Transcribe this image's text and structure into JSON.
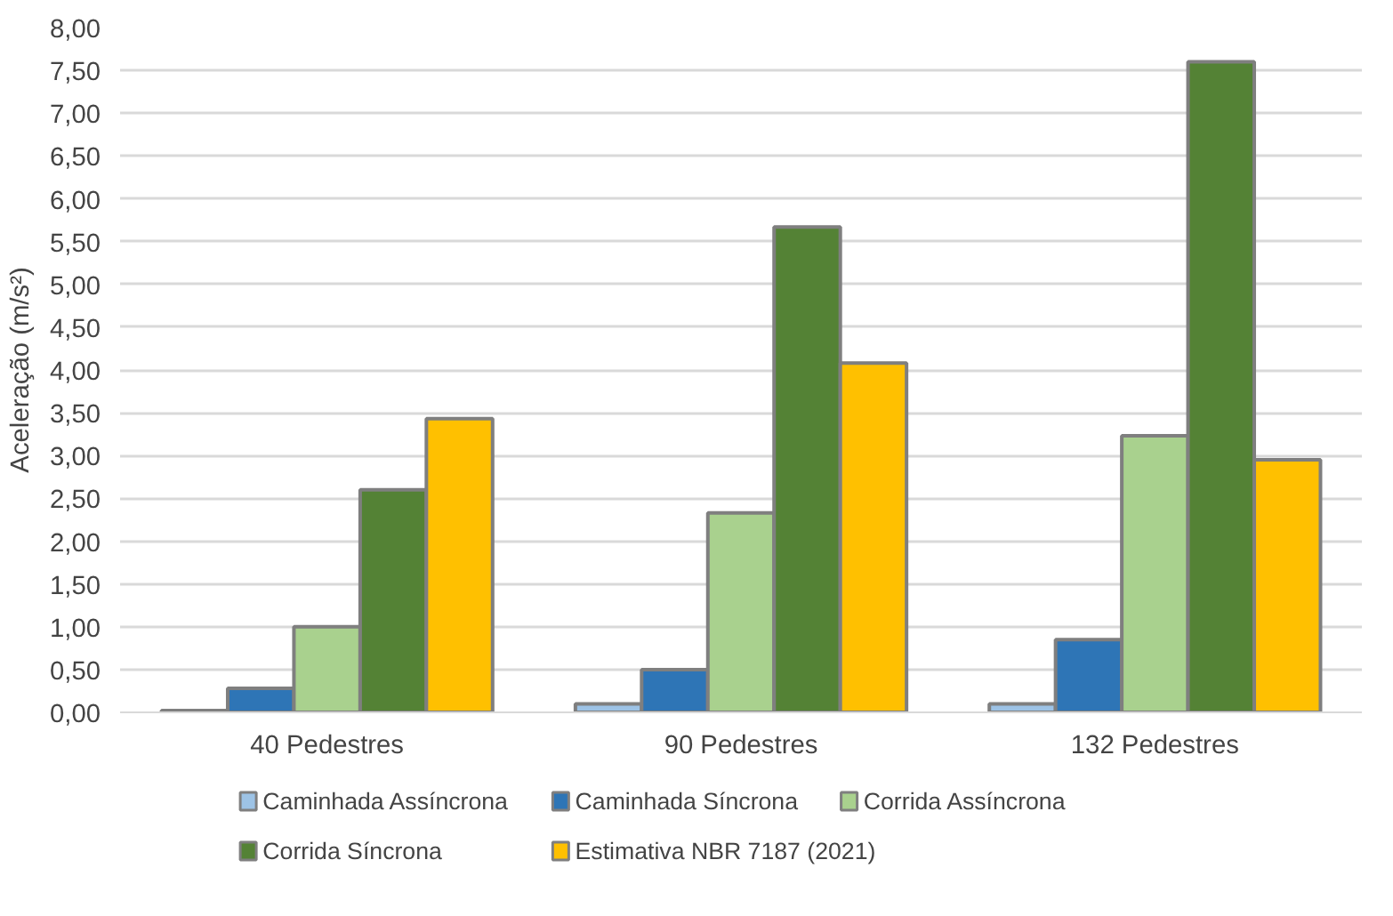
{
  "chart_data": {
    "type": "bar",
    "ylabel": "Aceleração (m/s²)",
    "categories": [
      "40 Pedestres",
      "90 Pedestres",
      "132 Pedestres"
    ],
    "series": [
      {
        "name": "Caminhada Assíncrona",
        "color": "#9dc3e6",
        "values": [
          0.02,
          0.1,
          0.1
        ]
      },
      {
        "name": "Caminhada Síncrona",
        "color": "#2e75b6",
        "values": [
          0.28,
          0.5,
          0.85
        ]
      },
      {
        "name": "Corrida Assíncrona",
        "color": "#a9d18e",
        "values": [
          1.0,
          2.33,
          3.23
        ]
      },
      {
        "name": "Corrida Síncrona",
        "color": "#548235",
        "values": [
          2.6,
          5.67,
          7.6
        ]
      },
      {
        "name": "Estimativa NBR 7187 (2021)",
        "color": "#ffc000",
        "values": [
          3.43,
          4.08,
          2.95
        ]
      }
    ],
    "ylim": [
      0,
      8
    ],
    "yticks": [
      {
        "value": 0,
        "label": "0,00"
      },
      {
        "value": 0.5,
        "label": "0,50"
      },
      {
        "value": 1,
        "label": "1,00"
      },
      {
        "value": 1.5,
        "label": "1,50"
      },
      {
        "value": 2,
        "label": "2,00"
      },
      {
        "value": 2.5,
        "label": "2,50"
      },
      {
        "value": 3,
        "label": "3,00"
      },
      {
        "value": 3.5,
        "label": "3,50"
      },
      {
        "value": 4,
        "label": "4,00"
      },
      {
        "value": 4.5,
        "label": "4,50"
      },
      {
        "value": 5,
        "label": "5,00"
      },
      {
        "value": 5.5,
        "label": "5,50"
      },
      {
        "value": 6,
        "label": "6,00"
      },
      {
        "value": 6.5,
        "label": "6,50"
      },
      {
        "value": 7,
        "label": "7,00"
      },
      {
        "value": 7.5,
        "label": "7,50"
      },
      {
        "value": 8,
        "label": "8,00"
      }
    ],
    "grid": "y",
    "legend": "bottom"
  }
}
